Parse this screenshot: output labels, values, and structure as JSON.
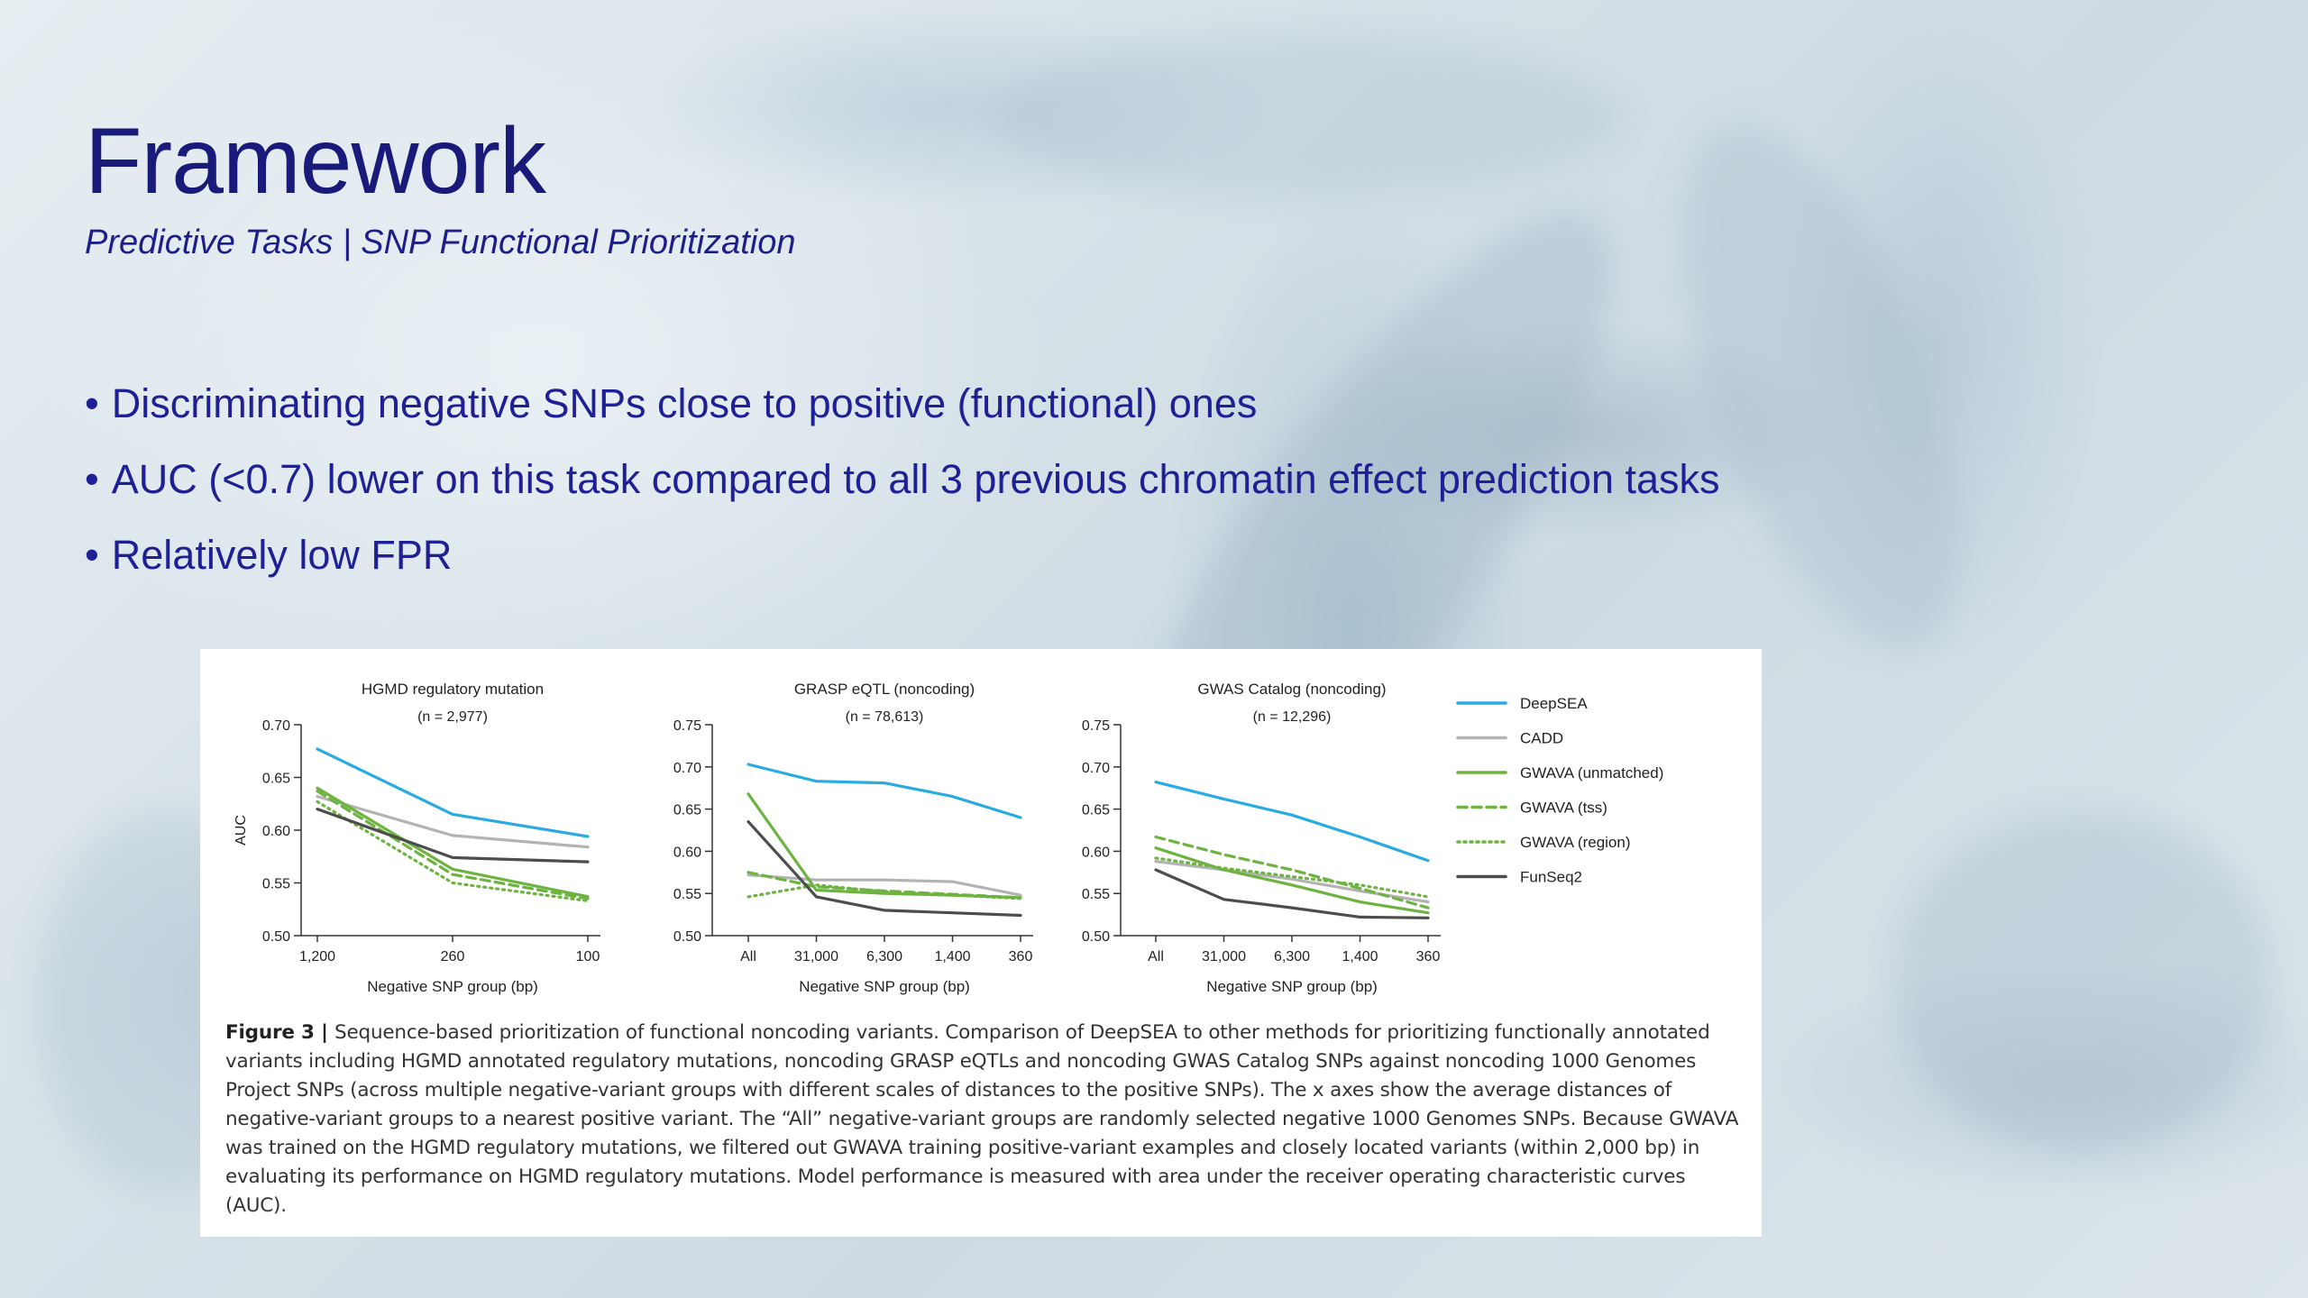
{
  "slide": {
    "title": "Framework",
    "subtitle": "Predictive Tasks | SNP Functional Prioritization",
    "bullets": [
      "Discriminating negative SNPs close to positive (functional) ones",
      "AUC (<0.7) lower on this task compared to all 3 previous chromatin effect prediction tasks",
      "Relatively low FPR"
    ]
  },
  "colors": {
    "title": "#1a1a7a",
    "bullet": "#1f1f96",
    "DeepSEA": "#29abe2",
    "CADD": "#b3b3b3",
    "GWAVA": "#6db33f",
    "FunSeq2": "#4d4d4d"
  },
  "figure": {
    "caption_label": "Figure 3",
    "caption_text": "Sequence-based prioritization of functional noncoding variants. Comparison of DeepSEA to other methods for prioritizing functionally annotated variants including HGMD annotated regulatory mutations, noncoding GRASP eQTLs and noncoding GWAS Catalog SNPs against noncoding 1000 Genomes Project SNPs (across multiple negative-variant groups with different scales of distances to the positive SNPs). The x axes show the average distances of negative-variant groups to a nearest positive variant. The “All” negative-variant groups are randomly selected negative 1000 Genomes SNPs. Because GWAVA was trained on the HGMD regulatory mutations, we filtered out GWAVA training positive-variant examples and closely located variants (within 2,000 bp) in evaluating its performance on HGMD regulatory mutations. Model performance is measured with area under the receiver operating characteristic curves (AUC)."
  },
  "chart_data": [
    {
      "type": "line",
      "title": "HGMD regulatory mutation",
      "subtitle": "(n = 2,977)",
      "xlabel": "Negative SNP group (bp)",
      "ylabel": "AUC",
      "categories": [
        "1,200",
        "260",
        "100"
      ],
      "ylim": [
        0.5,
        0.7
      ],
      "yticks": [
        "0.50",
        "0.55",
        "0.60",
        "0.65",
        "0.70"
      ],
      "series": [
        {
          "name": "DeepSEA",
          "values": [
            0.677,
            0.615,
            0.594
          ]
        },
        {
          "name": "CADD",
          "values": [
            0.632,
            0.595,
            0.584
          ]
        },
        {
          "name": "GWAVA (unmatched)",
          "values": [
            0.64,
            0.563,
            0.537
          ]
        },
        {
          "name": "GWAVA (tss)",
          "values": [
            0.637,
            0.558,
            0.535
          ]
        },
        {
          "name": "GWAVA (region)",
          "values": [
            0.627,
            0.55,
            0.533
          ]
        },
        {
          "name": "FunSeq2",
          "values": [
            0.62,
            0.574,
            0.57
          ]
        }
      ]
    },
    {
      "type": "line",
      "title": "GRASP eQTL (noncoding)",
      "subtitle": "(n = 78,613)",
      "xlabel": "Negative SNP group (bp)",
      "ylabel": "",
      "categories": [
        "All",
        "31,000",
        "6,300",
        "1,400",
        "360"
      ],
      "ylim": [
        0.5,
        0.75
      ],
      "yticks": [
        "0.50",
        "0.55",
        "0.60",
        "0.65",
        "0.70",
        "0.75"
      ],
      "series": [
        {
          "name": "DeepSEA",
          "values": [
            0.703,
            0.683,
            0.681,
            0.665,
            0.64
          ]
        },
        {
          "name": "CADD",
          "values": [
            0.572,
            0.566,
            0.566,
            0.564,
            0.548
          ]
        },
        {
          "name": "GWAVA (unmatched)",
          "values": [
            0.668,
            0.554,
            0.55,
            0.548,
            0.545
          ]
        },
        {
          "name": "GWAVA (tss)",
          "values": [
            0.575,
            0.558,
            0.553,
            0.549,
            0.545
          ]
        },
        {
          "name": "GWAVA (region)",
          "values": [
            0.546,
            0.56,
            0.552,
            0.548,
            0.544
          ]
        },
        {
          "name": "FunSeq2",
          "values": [
            0.635,
            0.546,
            0.53,
            0.527,
            0.524
          ]
        }
      ]
    },
    {
      "type": "line",
      "title": "GWAS Catalog (noncoding)",
      "subtitle": "(n = 12,296)",
      "xlabel": "Negative SNP group (bp)",
      "ylabel": "",
      "categories": [
        "All",
        "31,000",
        "6,300",
        "1,400",
        "360"
      ],
      "ylim": [
        0.5,
        0.75
      ],
      "yticks": [
        "0.50",
        "0.55",
        "0.60",
        "0.65",
        "0.70",
        "0.75"
      ],
      "series": [
        {
          "name": "DeepSEA",
          "values": [
            0.682,
            0.662,
            0.643,
            0.617,
            0.589
          ]
        },
        {
          "name": "CADD",
          "values": [
            0.588,
            0.578,
            0.567,
            0.553,
            0.54
          ]
        },
        {
          "name": "GWAVA (unmatched)",
          "values": [
            0.604,
            0.578,
            0.56,
            0.54,
            0.527
          ]
        },
        {
          "name": "GWAVA (tss)",
          "values": [
            0.617,
            0.596,
            0.578,
            0.556,
            0.533
          ]
        },
        {
          "name": "GWAVA (region)",
          "values": [
            0.592,
            0.58,
            0.57,
            0.56,
            0.546
          ]
        },
        {
          "name": "FunSeq2",
          "values": [
            0.578,
            0.543,
            0.533,
            0.522,
            0.521
          ]
        }
      ]
    }
  ],
  "legend": [
    {
      "name": "DeepSEA",
      "style": "solid",
      "color": "#29abe2"
    },
    {
      "name": "CADD",
      "style": "solid",
      "color": "#b3b3b3"
    },
    {
      "name": "GWAVA (unmatched)",
      "style": "solid",
      "color": "#6db33f"
    },
    {
      "name": "GWAVA (tss)",
      "style": "dashed",
      "color": "#6db33f"
    },
    {
      "name": "GWAVA (region)",
      "style": "dotted",
      "color": "#6db33f"
    },
    {
      "name": "FunSeq2",
      "style": "solid",
      "color": "#4d4d4d"
    }
  ]
}
